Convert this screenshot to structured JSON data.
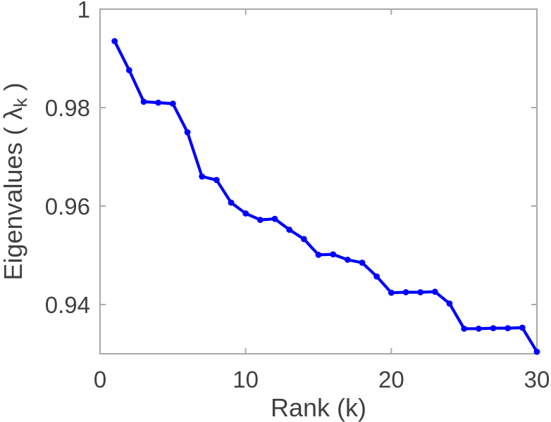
{
  "figure": {
    "background": "#ffffff"
  },
  "chart_data": {
    "type": "line",
    "title": "",
    "xlabel": "Rank (k)",
    "ylabel": "Eigenvalues ( λk )",
    "ylabel_parts": {
      "prefix": "Eigenvalues ( λ",
      "subscript": "k",
      "suffix": " )"
    },
    "xlim": [
      0,
      30
    ],
    "ylim": [
      0.93,
      1.0
    ],
    "xticks": {
      "values": [
        0,
        10,
        20,
        30
      ],
      "labels": [
        "0",
        "10",
        "20",
        "30"
      ]
    },
    "yticks": {
      "values": [
        0.94,
        0.96,
        0.98,
        1
      ],
      "labels": [
        "0.94",
        "0.96",
        "0.98",
        "1"
      ]
    },
    "grid": false,
    "legend": "none",
    "axis_color": "#a9a9a9",
    "text_color": "#404040",
    "background": "#ffffff",
    "series": [
      {
        "name": "eigenvalues",
        "color": "#0000ff",
        "marker": "circle",
        "x": [
          1,
          2,
          3,
          4,
          5,
          6,
          7,
          8,
          9,
          10,
          11,
          12,
          13,
          14,
          15,
          16,
          17,
          18,
          19,
          20,
          21,
          22,
          23,
          24,
          25,
          26,
          27,
          28,
          29,
          30
        ],
        "y": [
          0.9935,
          0.9876,
          0.9812,
          0.981,
          0.9808,
          0.975,
          0.966,
          0.9653,
          0.9607,
          0.9585,
          0.9572,
          0.9574,
          0.9552,
          0.9533,
          0.9501,
          0.9502,
          0.9491,
          0.9485,
          0.9457,
          0.9424,
          0.9425,
          0.9425,
          0.9426,
          0.9402,
          0.9351,
          0.9351,
          0.9352,
          0.9352,
          0.9353,
          0.9304
        ]
      }
    ]
  }
}
